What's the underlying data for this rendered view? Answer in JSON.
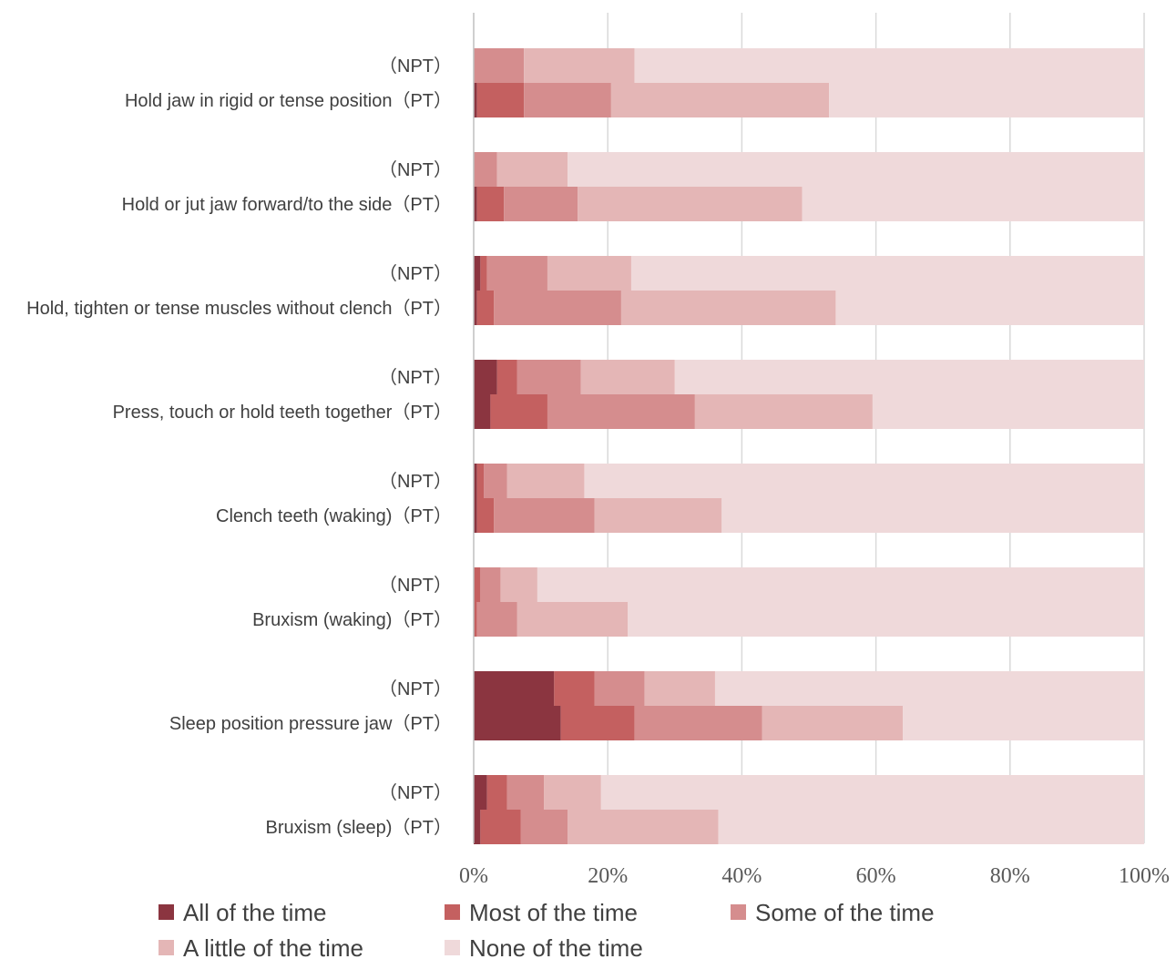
{
  "chart_data": {
    "type": "bar",
    "orientation": "horizontal",
    "stacked": "percent",
    "groups": [
      {
        "label": "Hold jaw in rigid or tense position",
        "rows": [
          {
            "label": "（NPT）",
            "values": [
              0,
              0,
              7.5,
              16.5,
              76
            ]
          },
          {
            "label": "（PT）",
            "values": [
              0.5,
              7,
              13,
              32.5,
              47
            ]
          }
        ]
      },
      {
        "label": "Hold or jut jaw forward/to the side",
        "rows": [
          {
            "label": "（NPT）",
            "values": [
              0,
              0,
              3.5,
              10.5,
              86
            ]
          },
          {
            "label": "（PT）",
            "values": [
              0.5,
              4,
              11,
              33.5,
              51
            ]
          }
        ]
      },
      {
        "label": "Hold, tighten or tense muscles without clench",
        "rows": [
          {
            "label": "（NPT）",
            "values": [
              1,
              1,
              9,
              12.5,
              76.5
            ]
          },
          {
            "label": "（PT）",
            "values": [
              0.5,
              2.5,
              19,
              32,
              46
            ]
          }
        ]
      },
      {
        "label": "Press, touch or hold teeth together",
        "rows": [
          {
            "label": "（NPT）",
            "values": [
              3.5,
              3,
              9.5,
              14,
              70
            ]
          },
          {
            "label": "（PT）",
            "values": [
              2.5,
              8.5,
              22,
              26.5,
              40.5
            ]
          }
        ]
      },
      {
        "label": "Clench teeth (waking)",
        "rows": [
          {
            "label": "（NPT）",
            "values": [
              0.5,
              1,
              3.5,
              11.5,
              83.5
            ]
          },
          {
            "label": "（PT）",
            "values": [
              0.5,
              2.5,
              15,
              19,
              63
            ]
          }
        ]
      },
      {
        "label": "Bruxism (waking)",
        "rows": [
          {
            "label": "（NPT）",
            "values": [
              0,
              1,
              3,
              5.5,
              90.5
            ]
          },
          {
            "label": "（PT）",
            "values": [
              0,
              0.5,
              6,
              16.5,
              77
            ]
          }
        ]
      },
      {
        "label": "Sleep position pressure jaw",
        "rows": [
          {
            "label": "（NPT）",
            "values": [
              12,
              6,
              7.5,
              10.5,
              64
            ]
          },
          {
            "label": "（PT）",
            "values": [
              13,
              11,
              19,
              21,
              36
            ]
          }
        ]
      },
      {
        "label": "Bruxism (sleep)",
        "rows": [
          {
            "label": "（NPT）",
            "values": [
              2,
              3,
              5.5,
              8.5,
              81
            ]
          },
          {
            "label": "（PT）",
            "values": [
              1,
              6,
              7,
              22.5,
              63.5
            ]
          }
        ]
      }
    ],
    "series": [
      {
        "name": "All of the time",
        "color": "#8b3540"
      },
      {
        "name": "Most of the time",
        "color": "#c46060"
      },
      {
        "name": "Some of the time",
        "color": "#d58d8e"
      },
      {
        "name": "A little of the time",
        "color": "#e4b6b6"
      },
      {
        "name": "None of the time",
        "color": "#efd9da"
      }
    ],
    "x_ticks": [
      "0%",
      "20%",
      "40%",
      "60%",
      "80%",
      "100%"
    ],
    "xlim": [
      0,
      100
    ],
    "grid": true,
    "legend_position": "bottom",
    "title": "",
    "xlabel": "",
    "ylabel": ""
  }
}
